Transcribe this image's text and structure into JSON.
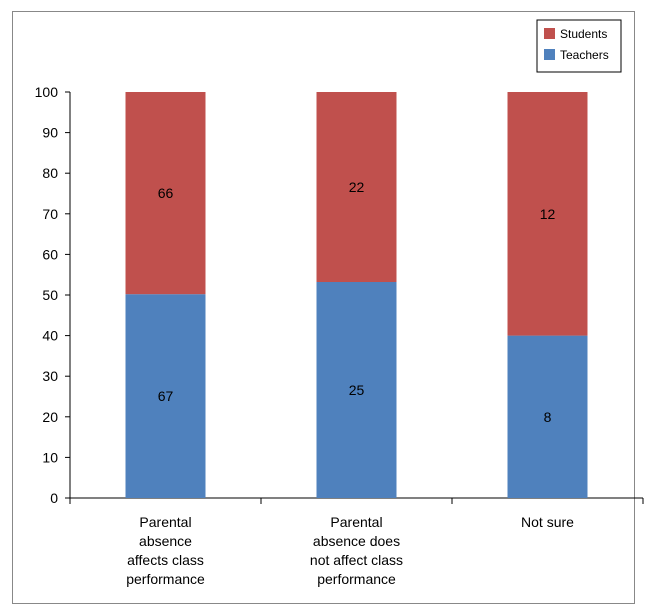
{
  "chart_data": {
    "type": "bar",
    "stacked": true,
    "categories": [
      [
        "Parental",
        "absence",
        "affects class",
        "performance"
      ],
      [
        "Parental",
        "absence does",
        "not affect class",
        "performance"
      ],
      [
        "Not sure"
      ]
    ],
    "series": [
      {
        "name": "Teachers",
        "color": "#4f81bd",
        "values": [
          50.2,
          53.2,
          40
        ],
        "labels": [
          "67",
          "25",
          "8"
        ]
      },
      {
        "name": "Students",
        "color": "#c0504d",
        "values": [
          49.8,
          46.8,
          60
        ],
        "labels": [
          "66",
          "22",
          "12"
        ]
      }
    ],
    "ylim": [
      0,
      100
    ],
    "yticks": [
      0,
      10,
      20,
      30,
      40,
      50,
      60,
      70,
      80,
      90,
      100
    ],
    "title": "",
    "xlabel": "",
    "ylabel": "",
    "legend": {
      "position": "top-right",
      "order": [
        "Students",
        "Teachers"
      ]
    },
    "grid": false
  }
}
